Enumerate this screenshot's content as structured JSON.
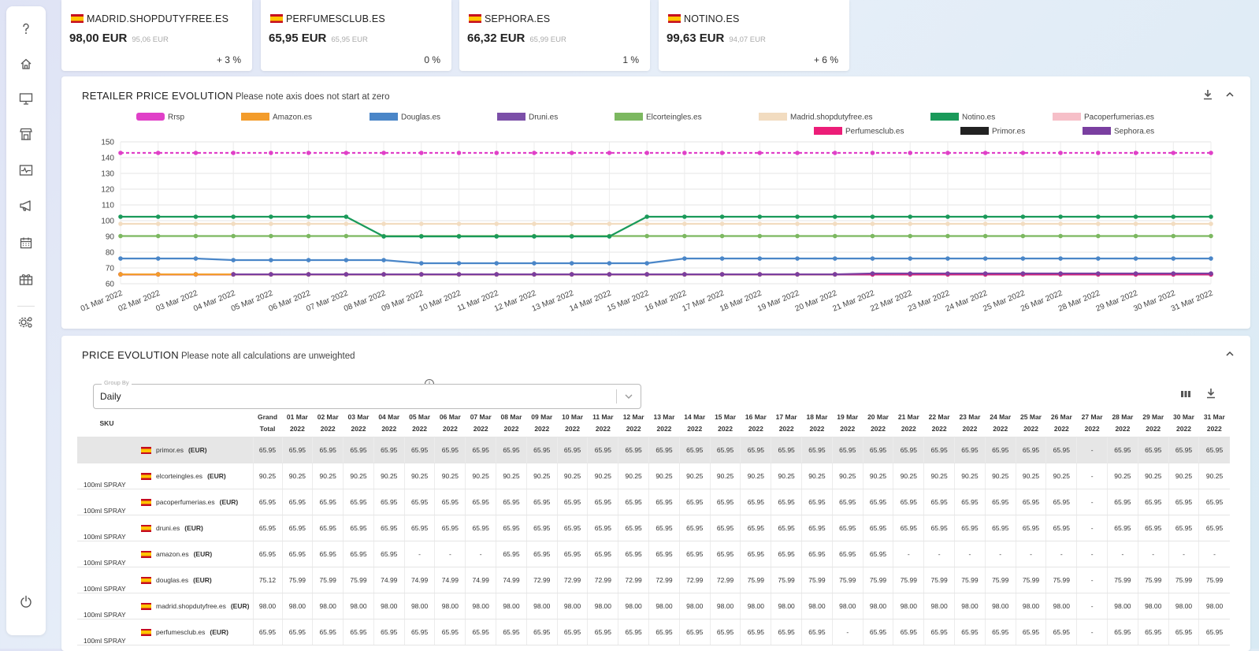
{
  "cards": [
    {
      "name": "MADRID.SHOPDUTYFREE.ES",
      "price": "98,00 EUR",
      "old_price": "95,06 EUR",
      "pct": "+ 3 %"
    },
    {
      "name": "PERFUMESCLUB.ES",
      "price": "65,95 EUR",
      "old_price": "65,95 EUR",
      "pct": "0 %"
    },
    {
      "name": "SEPHORA.ES",
      "price": "66,32 EUR",
      "old_price": "65,99 EUR",
      "pct": "1 %"
    },
    {
      "name": "NOTINO.ES",
      "price": "99,63 EUR",
      "old_price": "94,07 EUR",
      "pct": "+ 6 %"
    }
  ],
  "chart_panel": {
    "title": "RETAILER PRICE EVOLUTION",
    "subtitle": "Please note axis does not start at zero"
  },
  "chart_data": {
    "type": "line",
    "ylim": [
      60,
      150
    ],
    "yticks": [
      60,
      70,
      80,
      90,
      100,
      110,
      120,
      130,
      140,
      150
    ],
    "x": [
      "01 Mar 2022",
      "02 Mar 2022",
      "03 Mar 2022",
      "04 Mar 2022",
      "05 Mar 2022",
      "06 Mar 2022",
      "07 Mar 2022",
      "08 Mar 2022",
      "09 Mar 2022",
      "10 Mar 2022",
      "11 Mar 2022",
      "12 Mar 2022",
      "13 Mar 2022",
      "14 Mar 2022",
      "15 Mar 2022",
      "16 Mar 2022",
      "17 Mar 2022",
      "18 Mar 2022",
      "19 Mar 2022",
      "20 Mar 2022",
      "21 Mar 2022",
      "22 Mar 2022",
      "23 Mar 2022",
      "24 Mar 2022",
      "25 Mar 2022",
      "26 Mar 2022",
      "28 Mar 2022",
      "29 Mar 2022",
      "30 Mar 2022",
      "31 Mar 2022"
    ],
    "grid": true,
    "legend_position": "top",
    "series": [
      {
        "name": "Rrsp",
        "color": "#e040c8",
        "dashed": true,
        "values": [
          143,
          143,
          143,
          143,
          143,
          143,
          143,
          143,
          143,
          143,
          143,
          143,
          143,
          143,
          143,
          143,
          143,
          143,
          143,
          143,
          143,
          143,
          143,
          143,
          143,
          143,
          143,
          143,
          143,
          143
        ]
      },
      {
        "name": "Amazon.es",
        "color": "#f39c2b",
        "values": [
          65.95,
          65.95,
          65.95,
          65.95,
          65.95,
          65.95,
          65.95,
          65.95,
          65.95,
          65.95,
          65.95,
          65.95,
          65.95,
          65.95,
          65.95,
          65.95,
          65.95,
          65.95,
          65.95,
          65.95,
          null,
          null,
          null,
          null,
          null,
          null,
          null,
          null,
          null,
          null
        ]
      },
      {
        "name": "Douglas.es",
        "color": "#4a86c8",
        "values": [
          75.99,
          75.99,
          75.99,
          74.99,
          74.99,
          74.99,
          74.99,
          74.99,
          72.99,
          72.99,
          72.99,
          72.99,
          72.99,
          72.99,
          72.99,
          75.99,
          75.99,
          75.99,
          75.99,
          75.99,
          75.99,
          75.99,
          75.99,
          75.99,
          75.99,
          75.99,
          75.99,
          75.99,
          75.99,
          75.99
        ]
      },
      {
        "name": "Druni.es",
        "color": "#7b4fa8",
        "values": [
          65.95,
          65.95,
          65.95,
          65.95,
          65.95,
          65.95,
          65.95,
          65.95,
          65.95,
          65.95,
          65.95,
          65.95,
          65.95,
          65.95,
          65.95,
          65.95,
          65.95,
          65.95,
          65.95,
          65.95,
          65.95,
          65.95,
          65.95,
          65.95,
          65.95,
          65.95,
          65.95,
          65.95,
          65.95,
          65.95
        ]
      },
      {
        "name": "Elcorteingles.es",
        "color": "#7cb860",
        "values": [
          90.25,
          90.25,
          90.25,
          90.25,
          90.25,
          90.25,
          90.25,
          90.25,
          90.25,
          90.25,
          90.25,
          90.25,
          90.25,
          90.25,
          90.25,
          90.25,
          90.25,
          90.25,
          90.25,
          90.25,
          90.25,
          90.25,
          90.25,
          90.25,
          90.25,
          90.25,
          90.25,
          90.25,
          90.25,
          90.25
        ]
      },
      {
        "name": "Madrid.shopdutyfree.es",
        "color": "#f2dcc0",
        "values": [
          98,
          98,
          98,
          98,
          98,
          98,
          98,
          98,
          98,
          98,
          98,
          98,
          98,
          98,
          98,
          98,
          98,
          98,
          98,
          98,
          98,
          98,
          98,
          98,
          98,
          98,
          98,
          98,
          98,
          98
        ]
      },
      {
        "name": "Notino.es",
        "color": "#1a9a5a",
        "values": [
          102.5,
          102.5,
          102.5,
          102.5,
          102.5,
          102.5,
          102.5,
          90,
          90,
          90,
          90,
          90,
          90,
          90,
          102.5,
          102.5,
          102.5,
          102.5,
          102.5,
          102.5,
          102.5,
          102.5,
          102.5,
          102.5,
          102.5,
          102.5,
          102.5,
          102.5,
          102.5,
          102.5
        ]
      },
      {
        "name": "Pacoperfumerias.es",
        "color": "#f6bfc8",
        "values": [
          65.95,
          65.95,
          65.95,
          65.95,
          65.95,
          65.95,
          65.95,
          65.95,
          65.95,
          65.95,
          65.95,
          65.95,
          65.95,
          65.95,
          65.95,
          65.95,
          65.95,
          65.95,
          65.95,
          65.95,
          65.95,
          65.95,
          65.95,
          65.95,
          65.95,
          65.95,
          65.95,
          65.95,
          65.95,
          65.95
        ]
      },
      {
        "name": "Perfumesclub.es",
        "color": "#ec1d78",
        "values": [
          65.95,
          65.95,
          65.95,
          65.95,
          65.95,
          65.95,
          65.95,
          65.95,
          65.95,
          65.95,
          65.95,
          65.95,
          65.95,
          65.95,
          65.95,
          65.95,
          65.95,
          65.95,
          65.95,
          65.95,
          65.95,
          65.95,
          65.95,
          65.95,
          65.95,
          65.95,
          65.95,
          65.95,
          65.95,
          65.95
        ]
      },
      {
        "name": "Primor.es",
        "color": "#222222",
        "values": [
          65.95,
          65.95,
          65.95,
          65.95,
          65.95,
          65.95,
          65.95,
          65.95,
          65.95,
          65.95,
          65.95,
          65.95,
          65.95,
          65.95,
          65.95,
          65.95,
          65.95,
          65.95,
          65.95,
          65.95,
          65.95,
          65.95,
          65.95,
          65.95,
          65.95,
          65.95,
          65.95,
          65.95,
          65.95,
          65.95
        ]
      },
      {
        "name": "Sephora.es",
        "color": "#7a3fa0",
        "values": [
          null,
          null,
          null,
          65.95,
          65.95,
          65.95,
          65.95,
          65.95,
          65.95,
          65.95,
          65.95,
          65.95,
          65.95,
          65.95,
          65.95,
          65.95,
          65.95,
          65.95,
          65.95,
          65.95,
          66.5,
          66.5,
          66.5,
          66.5,
          66.5,
          66.5,
          66.5,
          66.5,
          66.5,
          66.5
        ]
      }
    ]
  },
  "table_panel": {
    "title": "PRICE EVOLUTION",
    "subtitle": "Please note all calculations are unweighted"
  },
  "group_by": {
    "label": "Group By",
    "value": "Daily"
  },
  "table": {
    "sku_header": "SKU",
    "columns": [
      [
        "Grand",
        "Total"
      ],
      [
        "01 Mar",
        "2022"
      ],
      [
        "02 Mar",
        "2022"
      ],
      [
        "03 Mar",
        "2022"
      ],
      [
        "04 Mar",
        "2022"
      ],
      [
        "05 Mar",
        "2022"
      ],
      [
        "06 Mar",
        "2022"
      ],
      [
        "07 Mar",
        "2022"
      ],
      [
        "08 Mar",
        "2022"
      ],
      [
        "09 Mar",
        "2022"
      ],
      [
        "10 Mar",
        "2022"
      ],
      [
        "11 Mar",
        "2022"
      ],
      [
        "12 Mar",
        "2022"
      ],
      [
        "13 Mar",
        "2022"
      ],
      [
        "14 Mar",
        "2022"
      ],
      [
        "15 Mar",
        "2022"
      ],
      [
        "16 Mar",
        "2022"
      ],
      [
        "17 Mar",
        "2022"
      ],
      [
        "18 Mar",
        "2022"
      ],
      [
        "19 Mar",
        "2022"
      ],
      [
        "20 Mar",
        "2022"
      ],
      [
        "21 Mar",
        "2022"
      ],
      [
        "22 Mar",
        "2022"
      ],
      [
        "23 Mar",
        "2022"
      ],
      [
        "24 Mar",
        "2022"
      ],
      [
        "25 Mar",
        "2022"
      ],
      [
        "26 Mar",
        "2022"
      ],
      [
        "27 Mar",
        "2022"
      ],
      [
        "28 Mar",
        "2022"
      ],
      [
        "29 Mar",
        "2022"
      ],
      [
        "30 Mar",
        "2022"
      ],
      [
        "31 Mar",
        "2022"
      ]
    ],
    "rows": [
      {
        "sku": "",
        "retailer": "primor.es",
        "currency": "(EUR)",
        "highlight": true,
        "values": [
          "65.95",
          "65.95",
          "65.95",
          "65.95",
          "65.95",
          "65.95",
          "65.95",
          "65.95",
          "65.95",
          "65.95",
          "65.95",
          "65.95",
          "65.95",
          "65.95",
          "65.95",
          "65.95",
          "65.95",
          "65.95",
          "65.95",
          "65.95",
          "65.95",
          "65.95",
          "65.95",
          "65.95",
          "65.95",
          "65.95",
          "65.95",
          "-",
          "65.95",
          "65.95",
          "65.95",
          "65.95"
        ]
      },
      {
        "sku": "100ml SPRAY",
        "retailer": "elcorteingles.es",
        "currency": "(EUR)",
        "values": [
          "90.25",
          "90.25",
          "90.25",
          "90.25",
          "90.25",
          "90.25",
          "90.25",
          "90.25",
          "90.25",
          "90.25",
          "90.25",
          "90.25",
          "90.25",
          "90.25",
          "90.25",
          "90.25",
          "90.25",
          "90.25",
          "90.25",
          "90.25",
          "90.25",
          "90.25",
          "90.25",
          "90.25",
          "90.25",
          "90.25",
          "90.25",
          "-",
          "90.25",
          "90.25",
          "90.25",
          "90.25"
        ]
      },
      {
        "sku": "100ml SPRAY",
        "retailer": "pacoperfumerias.es",
        "currency": "(EUR)",
        "values": [
          "65.95",
          "65.95",
          "65.95",
          "65.95",
          "65.95",
          "65.95",
          "65.95",
          "65.95",
          "65.95",
          "65.95",
          "65.95",
          "65.95",
          "65.95",
          "65.95",
          "65.95",
          "65.95",
          "65.95",
          "65.95",
          "65.95",
          "65.95",
          "65.95",
          "65.95",
          "65.95",
          "65.95",
          "65.95",
          "65.95",
          "65.95",
          "-",
          "65.95",
          "65.95",
          "65.95",
          "65.95"
        ]
      },
      {
        "sku": "100ml SPRAY",
        "retailer": "druni.es",
        "currency": "(EUR)",
        "values": [
          "65.95",
          "65.95",
          "65.95",
          "65.95",
          "65.95",
          "65.95",
          "65.95",
          "65.95",
          "65.95",
          "65.95",
          "65.95",
          "65.95",
          "65.95",
          "65.95",
          "65.95",
          "65.95",
          "65.95",
          "65.95",
          "65.95",
          "65.95",
          "65.95",
          "65.95",
          "65.95",
          "65.95",
          "65.95",
          "65.95",
          "65.95",
          "-",
          "65.95",
          "65.95",
          "65.95",
          "65.95"
        ]
      },
      {
        "sku": "100ml SPRAY",
        "retailer": "amazon.es",
        "currency": "(EUR)",
        "values": [
          "65.95",
          "65.95",
          "65.95",
          "65.95",
          "65.95",
          "-",
          "-",
          "-",
          "65.95",
          "65.95",
          "65.95",
          "65.95",
          "65.95",
          "65.95",
          "65.95",
          "65.95",
          "65.95",
          "65.95",
          "65.95",
          "65.95",
          "65.95",
          "-",
          "-",
          "-",
          "-",
          "-",
          "-",
          "-",
          "-",
          "-",
          "-",
          "-"
        ]
      },
      {
        "sku": "100ml SPRAY",
        "retailer": "douglas.es",
        "currency": "(EUR)",
        "values": [
          "75.12",
          "75.99",
          "75.99",
          "75.99",
          "74.99",
          "74.99",
          "74.99",
          "74.99",
          "74.99",
          "72.99",
          "72.99",
          "72.99",
          "72.99",
          "72.99",
          "72.99",
          "72.99",
          "75.99",
          "75.99",
          "75.99",
          "75.99",
          "75.99",
          "75.99",
          "75.99",
          "75.99",
          "75.99",
          "75.99",
          "75.99",
          "-",
          "75.99",
          "75.99",
          "75.99",
          "75.99"
        ]
      },
      {
        "sku": "100ml SPRAY",
        "retailer": "madrid.shopdutyfree.es",
        "currency": "(EUR)",
        "values": [
          "98.00",
          "98.00",
          "98.00",
          "98.00",
          "98.00",
          "98.00",
          "98.00",
          "98.00",
          "98.00",
          "98.00",
          "98.00",
          "98.00",
          "98.00",
          "98.00",
          "98.00",
          "98.00",
          "98.00",
          "98.00",
          "98.00",
          "98.00",
          "98.00",
          "98.00",
          "98.00",
          "98.00",
          "98.00",
          "98.00",
          "98.00",
          "-",
          "98.00",
          "98.00",
          "98.00",
          "98.00"
        ]
      },
      {
        "sku": "100ml SPRAY",
        "retailer": "perfumesclub.es",
        "currency": "(EUR)",
        "values": [
          "65.95",
          "65.95",
          "65.95",
          "65.95",
          "65.95",
          "65.95",
          "65.95",
          "65.95",
          "65.95",
          "65.95",
          "65.95",
          "65.95",
          "65.95",
          "65.95",
          "65.95",
          "65.95",
          "65.95",
          "65.95",
          "65.95",
          "-",
          "65.95",
          "65.95",
          "65.95",
          "65.95",
          "65.95",
          "65.95",
          "65.95",
          "-",
          "65.95",
          "65.95",
          "65.95",
          "65.95"
        ]
      }
    ]
  },
  "sidebar_icons": [
    "help-icon",
    "home-icon",
    "monitor-icon",
    "store-icon",
    "activity-icon",
    "megaphone-icon",
    "calendar-icon",
    "gift-icon",
    "settings-icon",
    "power-icon"
  ]
}
